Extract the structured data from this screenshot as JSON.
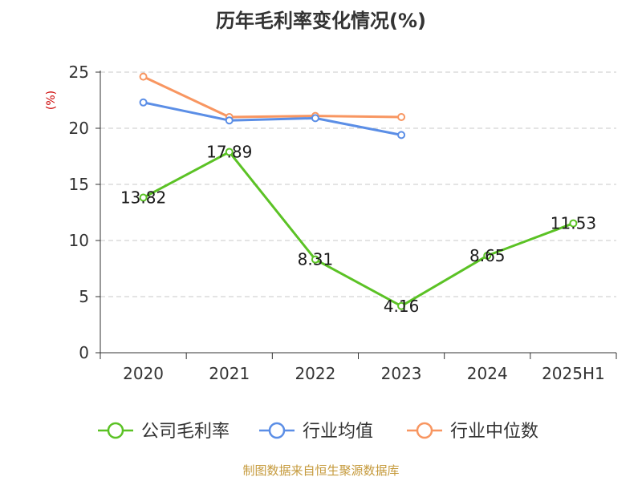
{
  "colors": {
    "company": "#5bc225",
    "industry_avg": "#5b8ee6",
    "industry_median": "#f89661",
    "unit": "#cc0000",
    "grid": "#c8c8c8",
    "axis": "#333333",
    "source": "#c59a3c"
  },
  "source_note": "制图数据来自恒生聚源数据库",
  "chart_data": {
    "type": "line",
    "title": "历年毛利率变化情况(%)",
    "ylabel": "(%)",
    "xlabel": "",
    "categories": [
      "2020",
      "2021",
      "2022",
      "2023",
      "2024",
      "2025H1"
    ],
    "ylim": [
      0,
      25
    ],
    "yticks": [
      0,
      5,
      10,
      15,
      20,
      25
    ],
    "grid": true,
    "legend": "bottom",
    "series": [
      {
        "name": "公司毛利率",
        "color_key": "company",
        "values": [
          13.82,
          17.89,
          8.31,
          4.16,
          8.65,
          11.53
        ],
        "labels": [
          "13.82",
          "17.89",
          "8.31",
          "4.16",
          "8.65",
          "11.53"
        ]
      },
      {
        "name": "行业均值",
        "color_key": "industry_avg",
        "values": [
          22.3,
          20.7,
          20.9,
          19.4,
          null,
          null
        ],
        "labels": []
      },
      {
        "name": "行业中位数",
        "color_key": "industry_median",
        "values": [
          24.6,
          21.0,
          21.1,
          21.0,
          null,
          null
        ],
        "labels": []
      }
    ]
  }
}
